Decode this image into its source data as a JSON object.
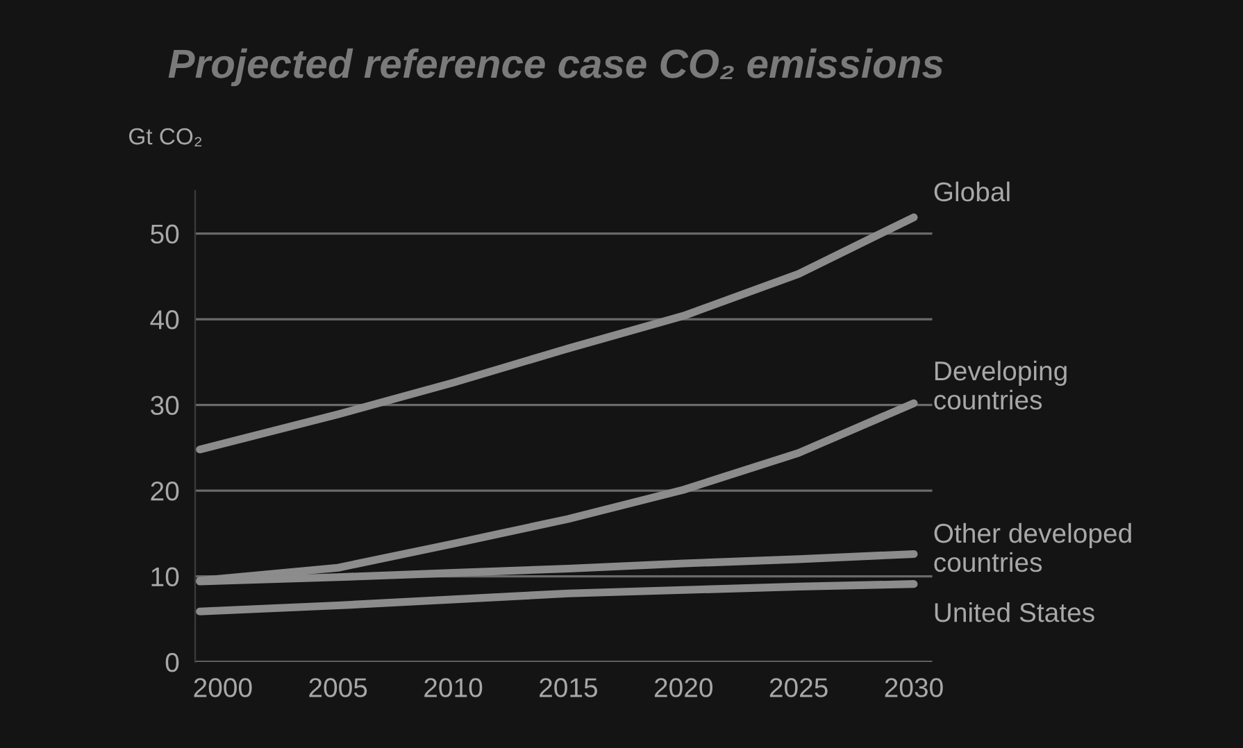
{
  "chart_data": {
    "type": "line",
    "title": "Projected reference case CO₂ emissions",
    "ylabel": "Gt CO₂",
    "x": [
      1999,
      2005,
      2010,
      2015,
      2020,
      2025,
      2030
    ],
    "series": [
      {
        "name": "Global",
        "color": "#8c8c8c",
        "values": [
          24.8,
          28.9,
          32.6,
          36.6,
          40.4,
          45.3,
          51.9
        ]
      },
      {
        "name": "Developing\ncountries",
        "color": "#8c8c8c",
        "values": [
          9.5,
          11.0,
          13.8,
          16.7,
          20.1,
          24.4,
          30.2
        ]
      },
      {
        "name": "Other developed\ncountries",
        "color": "#8c8c8c",
        "values": [
          9.4,
          9.9,
          10.4,
          10.9,
          11.5,
          12.0,
          12.6
        ]
      },
      {
        "name": "United States",
        "color": "#8c8c8c",
        "values": [
          5.9,
          6.6,
          7.3,
          8.0,
          8.4,
          8.8,
          9.1
        ]
      }
    ],
    "xlim": [
      1998.8,
      2030.8
    ],
    "ylim": [
      0,
      55
    ],
    "xticks": [
      2000,
      2005,
      2010,
      2015,
      2020,
      2025,
      2030
    ],
    "yticks": [
      0,
      10,
      20,
      30,
      40,
      50
    ],
    "grid": "y",
    "legend": false,
    "marker": "none",
    "line_style": "solid"
  }
}
